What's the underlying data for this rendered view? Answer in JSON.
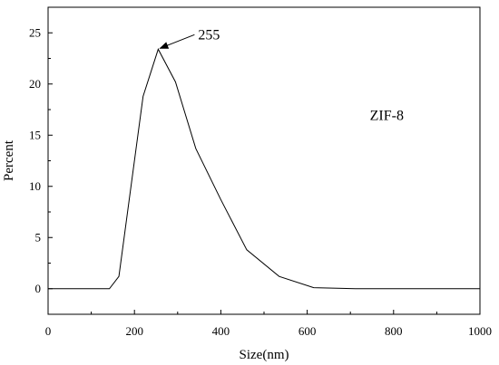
{
  "chart_data": {
    "type": "line",
    "xlabel": "Size(nm)",
    "ylabel": "Percent",
    "xlim": [
      0,
      1000
    ],
    "ylim": [
      -2.5,
      27.5
    ],
    "xticks": [
      0,
      200,
      400,
      600,
      800,
      1000
    ],
    "yticks": [
      0,
      5,
      10,
      15,
      20,
      25
    ],
    "grid": false,
    "series": [
      {
        "x": [
          0,
          142,
          164,
          220,
          255,
          295,
          342,
          400,
          460,
          535,
          615,
          712,
          1000
        ],
        "y": [
          0,
          0,
          1.2,
          18.8,
          23.4,
          20.2,
          13.7,
          8.7,
          3.8,
          1.2,
          0.1,
          0,
          0
        ]
      }
    ],
    "annotations": [
      {
        "text": "255",
        "arrow_to": [
          255,
          23.4
        ]
      },
      {
        "text": "ZIF-8"
      }
    ],
    "colors": {
      "line": "#000000",
      "axes": "#000000"
    }
  }
}
